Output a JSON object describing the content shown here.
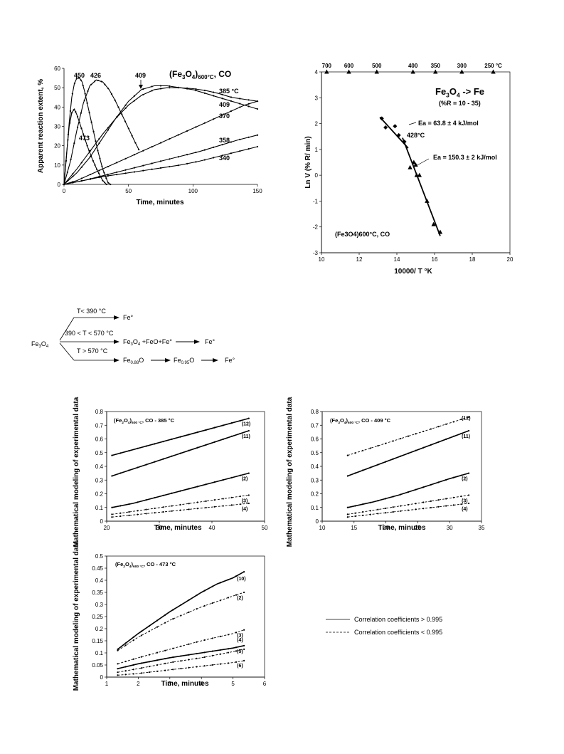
{
  "chart_data": [
    {
      "id": "chart1",
      "type": "line",
      "title": "(Fe3O4)600°C, CO",
      "xlabel": "Time, minutes",
      "ylabel": "Apparent reaction extent, %",
      "xlim": [
        0,
        150
      ],
      "ylim": [
        0,
        60
      ],
      "xticks": [
        0,
        50,
        100,
        150
      ],
      "yticks": [
        0,
        10,
        20,
        30,
        40,
        50,
        60
      ],
      "grid": false,
      "series": [
        {
          "name": "450",
          "x": [
            0,
            2,
            4,
            6,
            8,
            10,
            12,
            14,
            16,
            18,
            22,
            26,
            30,
            34,
            36
          ],
          "y": [
            0,
            15,
            32,
            45,
            52,
            55,
            55,
            53,
            48,
            42,
            30,
            18,
            8,
            1,
            0
          ]
        },
        {
          "name": "426",
          "x": [
            0,
            5,
            10,
            15,
            20,
            25,
            30,
            35,
            40,
            45,
            50,
            55,
            58
          ],
          "y": [
            0,
            12,
            28,
            42,
            51,
            54,
            53,
            49,
            43,
            36,
            29,
            22,
            18
          ]
        },
        {
          "name": "473",
          "x": [
            0,
            2,
            4,
            6,
            8,
            10,
            14,
            18,
            22,
            26,
            30,
            33
          ],
          "y": [
            0,
            16,
            30,
            37,
            39,
            36,
            28,
            20,
            13,
            7,
            2,
            0
          ]
        },
        {
          "name": "409",
          "x": [
            0,
            10,
            20,
            30,
            40,
            50,
            60,
            70,
            80,
            90,
            100,
            110,
            120,
            130,
            140,
            150
          ],
          "y": [
            0,
            6,
            14,
            24,
            34,
            43,
            49,
            51,
            51,
            50,
            49,
            47,
            45,
            43,
            41,
            39
          ]
        },
        {
          "name": "385 °C",
          "x": [
            0,
            10,
            20,
            30,
            40,
            50,
            60,
            70,
            80,
            90,
            100,
            110,
            120,
            130,
            140,
            150
          ],
          "y": [
            0,
            8,
            17,
            26,
            34,
            41,
            46,
            49,
            50,
            50,
            49.5,
            48.5,
            47,
            45,
            44,
            43
          ]
        },
        {
          "name": "370",
          "x": [
            0,
            10,
            20,
            30,
            40,
            50,
            60,
            70,
            80,
            90,
            100,
            110,
            120,
            130,
            140,
            150
          ],
          "y": [
            0,
            2,
            5,
            8,
            11,
            14,
            17,
            20,
            23,
            26,
            29,
            32,
            35,
            38,
            41,
            43
          ]
        },
        {
          "name": "358",
          "x": [
            0,
            15,
            30,
            45,
            60,
            75,
            90,
            105,
            120,
            135,
            150
          ],
          "y": [
            0,
            2,
            4.5,
            7,
            9.5,
            12,
            14.5,
            17,
            20,
            23,
            25.5
          ]
        },
        {
          "name": "340",
          "x": [
            0,
            15,
            30,
            45,
            60,
            75,
            90,
            105,
            120,
            135,
            150
          ],
          "y": [
            0,
            2,
            4,
            5.5,
            7,
            8.5,
            10,
            12,
            14.5,
            17,
            19.5
          ]
        }
      ],
      "labels": [
        "450",
        "426",
        "409",
        "473",
        "385 °C",
        "409",
        "370",
        "358",
        "340"
      ]
    },
    {
      "id": "chart2",
      "type": "scatter",
      "xlabel": "10000/ T °K",
      "ylabel": "Ln V (% R/ min)",
      "xlim": [
        10,
        20
      ],
      "ylim": [
        -3,
        4
      ],
      "xticks": [
        10,
        12,
        14,
        16,
        18,
        20
      ],
      "yticks": [
        -3,
        -2,
        -1,
        0,
        1,
        2,
        3,
        4
      ],
      "top_axis_label_values": [
        "700",
        "600",
        "500",
        "400",
        "350",
        "300",
        "250 °C"
      ],
      "top_axis_celsius": [
        700,
        600,
        500,
        400,
        350,
        300,
        250
      ],
      "title": "Fe3O4 -> Fe",
      "subtitle": "(%R = 10 - 35)",
      "legend_label": "(Fe3O4)600°C, CO",
      "annotations": [
        "Ea = 63.8  ± 4 kJ/mol",
        "428°C",
        "Ea = 150.3 ± 2 kJ/mol"
      ],
      "points_diamond": [
        [
          13.2,
          2.2
        ],
        [
          13.4,
          1.85
        ],
        [
          13.9,
          1.9
        ],
        [
          14.1,
          1.55
        ],
        [
          14.4,
          1.3
        ]
      ],
      "points_triangle": [
        [
          14.7,
          0.3
        ],
        [
          14.9,
          0.5
        ],
        [
          15.0,
          0.4
        ],
        [
          15.05,
          0.0
        ],
        [
          15.2,
          0.0
        ],
        [
          15.6,
          -1.0
        ],
        [
          15.95,
          -1.9
        ],
        [
          16.3,
          -2.2
        ]
      ],
      "fit_lines": [
        {
          "x": [
            13.1,
            14.6
          ],
          "y": [
            2.25,
            1.05
          ]
        },
        {
          "x": [
            14.3,
            16.3
          ],
          "y": [
            1.45,
            -2.35
          ]
        }
      ]
    },
    {
      "id": "chart3",
      "type": "line",
      "title": "(Fe2O4)600°C, CO - 385 °C",
      "xlabel": "Time, minutes",
      "ylabel": "Mathematical modeling of experimental data",
      "xlim": [
        20,
        50
      ],
      "ylim": [
        0,
        0.8
      ],
      "xticks": [
        20,
        30,
        40,
        50
      ],
      "yticks": [
        0,
        0.1,
        0.2,
        0.3,
        0.4,
        0.5,
        0.6,
        0.7,
        0.8
      ],
      "series": [
        {
          "name": "(12)",
          "x": [
            21,
            47
          ],
          "y": [
            0.48,
            0.75
          ],
          "style": "solid"
        },
        {
          "name": "(11)",
          "x": [
            21,
            47
          ],
          "y": [
            0.33,
            0.66
          ],
          "style": "solid"
        },
        {
          "name": "(2)",
          "x": [
            21,
            25,
            30,
            35,
            40,
            47
          ],
          "y": [
            0.1,
            0.13,
            0.18,
            0.23,
            0.28,
            0.35
          ],
          "style": "solid"
        },
        {
          "name": "(3)",
          "x": [
            21,
            47
          ],
          "y": [
            0.05,
            0.19
          ],
          "style": "dashed"
        },
        {
          "name": "(4)",
          "x": [
            21,
            47
          ],
          "y": [
            0.03,
            0.13
          ],
          "style": "dashed"
        }
      ]
    },
    {
      "id": "chart4",
      "type": "line",
      "title": "(Fe3O4)600°C, CO - 409 °C",
      "xlabel": "Time, minutes",
      "ylabel": "Mathematical modeling of experimental data",
      "xlim": [
        10,
        35
      ],
      "ylim": [
        0,
        0.8
      ],
      "xticks": [
        10,
        15,
        20,
        25,
        30,
        35
      ],
      "yticks": [
        0,
        0.1,
        0.2,
        0.3,
        0.4,
        0.5,
        0.6,
        0.7,
        0.8
      ],
      "series": [
        {
          "name": "(12)",
          "x": [
            14,
            33
          ],
          "y": [
            0.48,
            0.76
          ],
          "style": "dashed"
        },
        {
          "name": "(11)",
          "x": [
            14,
            33
          ],
          "y": [
            0.33,
            0.66
          ],
          "style": "solid"
        },
        {
          "name": "(2)",
          "x": [
            14,
            18,
            22,
            26,
            30,
            33
          ],
          "y": [
            0.1,
            0.14,
            0.19,
            0.25,
            0.31,
            0.35
          ],
          "style": "solid"
        },
        {
          "name": "(3)",
          "x": [
            14,
            33
          ],
          "y": [
            0.05,
            0.19
          ],
          "style": "dashed"
        },
        {
          "name": "(4)",
          "x": [
            14,
            33
          ],
          "y": [
            0.03,
            0.13
          ],
          "style": "dashed"
        }
      ]
    },
    {
      "id": "chart5",
      "type": "line",
      "title": "(Fe2O4)600°C, CO - 473 °C",
      "xlabel": "Time, minutes",
      "ylabel": "Mathematical modeling of experimental data",
      "xlim": [
        1,
        6
      ],
      "ylim": [
        0,
        0.5
      ],
      "xticks": [
        1,
        2,
        3,
        4,
        5,
        6
      ],
      "yticks": [
        0,
        0.05,
        0.1,
        0.15,
        0.2,
        0.25,
        0.3,
        0.35,
        0.4,
        0.45,
        0.5
      ],
      "series": [
        {
          "name": "(10)",
          "x": [
            1.35,
            2,
            3,
            4,
            4.5,
            5,
            5.35
          ],
          "y": [
            0.115,
            0.18,
            0.27,
            0.35,
            0.385,
            0.41,
            0.435
          ],
          "style": "solid"
        },
        {
          "name": "(2)",
          "x": [
            1.35,
            2,
            3,
            4,
            5,
            5.35
          ],
          "y": [
            0.11,
            0.165,
            0.235,
            0.29,
            0.335,
            0.35
          ],
          "style": "dashed"
        },
        {
          "name": "(3)",
          "x": [
            1.35,
            2,
            3,
            4,
            5,
            5.35
          ],
          "y": [
            0.055,
            0.08,
            0.115,
            0.15,
            0.18,
            0.195
          ],
          "style": "dashed"
        },
        {
          "name": "(4)",
          "x": [
            1.35,
            2,
            3,
            4,
            5,
            5.35
          ],
          "y": [
            0.035,
            0.055,
            0.08,
            0.1,
            0.12,
            0.13
          ],
          "style": "solid"
        },
        {
          "name": "(5)",
          "x": [
            1.35,
            2,
            3,
            4,
            5,
            5.35
          ],
          "y": [
            0.02,
            0.035,
            0.06,
            0.08,
            0.105,
            0.115
          ],
          "style": "dashed"
        },
        {
          "name": "(6)",
          "x": [
            1.35,
            2,
            3,
            4,
            5,
            5.35
          ],
          "y": [
            0.008,
            0.015,
            0.03,
            0.045,
            0.06,
            0.068
          ],
          "style": "dashed"
        }
      ]
    }
  ],
  "legend": {
    "solid_label": "Correlation coefficients > 0.995",
    "dashed_label": "Correlation coefficients < 0.995"
  },
  "scheme": {
    "reactant": "Fe3O4",
    "branch1_condition": "T< 390 °C",
    "branch1_product": "Fe°",
    "branch2_condition": "390 < T < 570 °C",
    "branch2_intermediate": "Fe3O4 +FeO+Fe°",
    "branch2_product": "Fe°",
    "branch3_condition": "T > 570 °C",
    "branch3_step1": "Fe0.88O",
    "branch3_step2": "Fe0.95O",
    "branch3_product": "Fe°"
  }
}
